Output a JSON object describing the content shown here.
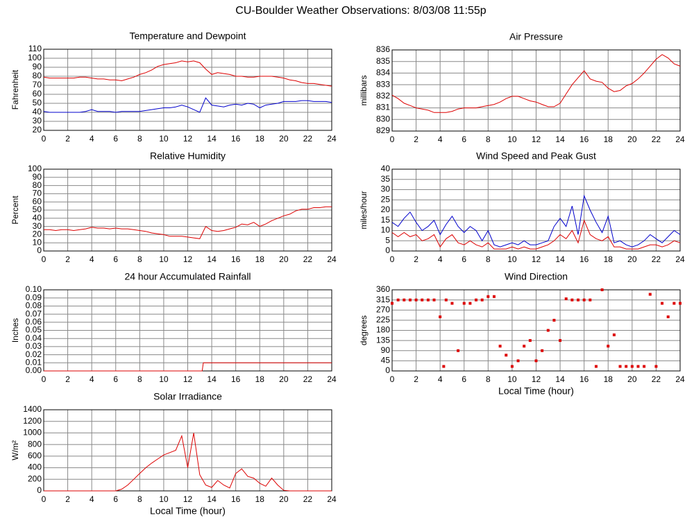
{
  "title": "CU-Boulder Weather Observations: 8/03/08 11:55p",
  "chart_data": [
    {
      "type": "line",
      "title": "Temperature and Dewpoint",
      "ylabel": "Fahrenheit",
      "x": [
        0,
        0.5,
        1,
        1.5,
        2,
        2.5,
        3,
        3.5,
        4,
        4.5,
        5,
        5.5,
        6,
        6.5,
        7,
        7.5,
        8,
        8.5,
        9,
        9.5,
        10,
        10.5,
        11,
        11.5,
        12,
        12.5,
        13,
        13.5,
        14,
        14.5,
        15,
        15.5,
        16,
        16.5,
        17,
        17.5,
        18,
        18.5,
        19,
        19.5,
        20,
        20.5,
        21,
        21.5,
        22,
        22.5,
        23,
        23.5,
        24
      ],
      "series": [
        {
          "color": "#dd0000",
          "values": [
            79,
            78,
            78,
            78,
            78,
            78,
            79,
            79,
            78,
            77,
            77,
            76,
            76,
            75,
            77,
            79,
            82,
            84,
            87,
            91,
            93,
            94,
            95,
            97,
            96,
            97,
            95,
            88,
            82,
            84,
            83,
            82,
            80,
            80,
            79,
            79,
            80,
            80,
            80,
            79,
            78,
            76,
            75,
            73,
            72,
            72,
            71,
            70,
            69
          ]
        },
        {
          "color": "#0000cc",
          "values": [
            41,
            40,
            40,
            40,
            40,
            40,
            40,
            41,
            43,
            41,
            41,
            41,
            40,
            41,
            41,
            41,
            41,
            42,
            43,
            44,
            45,
            45,
            46,
            48,
            46,
            43,
            40,
            56,
            48,
            47,
            46,
            48,
            49,
            48,
            50,
            49,
            45,
            48,
            49,
            50,
            52,
            52,
            52,
            53,
            53,
            52,
            52,
            52,
            51
          ]
        }
      ],
      "xlim": [
        0,
        24
      ],
      "xticks": [
        0,
        2,
        4,
        6,
        8,
        10,
        12,
        14,
        16,
        18,
        20,
        22,
        24
      ],
      "ylim": [
        20,
        110
      ],
      "yticks": [
        20,
        30,
        40,
        50,
        60,
        70,
        80,
        90,
        100,
        110
      ],
      "grid": true
    },
    {
      "type": "line",
      "title": "Air Pressure",
      "ylabel": "millibars",
      "x": [
        0,
        0.5,
        1,
        1.5,
        2,
        2.5,
        3,
        3.5,
        4,
        4.5,
        5,
        5.5,
        6,
        6.5,
        7,
        7.5,
        8,
        8.5,
        9,
        9.5,
        10,
        10.5,
        11,
        11.5,
        12,
        12.5,
        13,
        13.5,
        14,
        14.5,
        15,
        15.5,
        16,
        16.5,
        17,
        17.5,
        18,
        18.5,
        19,
        19.5,
        20,
        20.5,
        21,
        21.5,
        22,
        22.5,
        23,
        23.5,
        24
      ],
      "series": [
        {
          "color": "#dd0000",
          "values": [
            832.1,
            831.8,
            831.4,
            831.2,
            831.0,
            830.9,
            830.8,
            830.6,
            830.6,
            830.6,
            830.7,
            830.9,
            831.0,
            831.0,
            831.0,
            831.1,
            831.2,
            831.3,
            831.5,
            831.8,
            832.0,
            832.0,
            831.8,
            831.6,
            831.5,
            831.3,
            831.1,
            831.1,
            831.4,
            832.2,
            833.0,
            833.6,
            834.2,
            833.5,
            833.3,
            833.2,
            832.7,
            832.4,
            832.5,
            832.9,
            833.1,
            833.5,
            834.0,
            834.6,
            835.2,
            835.6,
            835.3,
            834.8,
            834.6
          ]
        }
      ],
      "xlim": [
        0,
        24
      ],
      "xticks": [
        0,
        2,
        4,
        6,
        8,
        10,
        12,
        14,
        16,
        18,
        20,
        22,
        24
      ],
      "ylim": [
        829,
        836
      ],
      "yticks": [
        829,
        830,
        831,
        832,
        833,
        834,
        835,
        836
      ],
      "grid": true
    },
    {
      "type": "line",
      "title": "Relative Humidity",
      "ylabel": "Percent",
      "x": [
        0,
        0.5,
        1,
        1.5,
        2,
        2.5,
        3,
        3.5,
        4,
        4.5,
        5,
        5.5,
        6,
        6.5,
        7,
        7.5,
        8,
        8.5,
        9,
        9.5,
        10,
        10.5,
        11,
        11.5,
        12,
        12.5,
        13,
        13.5,
        14,
        14.5,
        15,
        15.5,
        16,
        16.5,
        17,
        17.5,
        18,
        18.5,
        19,
        19.5,
        20,
        20.5,
        21,
        21.5,
        22,
        22.5,
        23,
        23.5,
        24
      ],
      "series": [
        {
          "color": "#dd0000",
          "values": [
            26,
            26,
            25,
            26,
            26,
            25,
            26,
            27,
            29,
            28,
            28,
            27,
            28,
            27,
            27,
            26,
            25,
            24,
            22,
            21,
            20,
            18,
            18,
            18,
            17,
            16,
            15,
            30,
            25,
            24,
            25,
            27,
            29,
            33,
            32,
            35,
            30,
            33,
            37,
            40,
            43,
            45,
            49,
            51,
            51,
            53,
            53,
            54,
            54
          ]
        }
      ],
      "xlim": [
        0,
        24
      ],
      "xticks": [
        0,
        2,
        4,
        6,
        8,
        10,
        12,
        14,
        16,
        18,
        20,
        22,
        24
      ],
      "ylim": [
        0,
        100
      ],
      "yticks": [
        0,
        10,
        20,
        30,
        40,
        50,
        60,
        70,
        80,
        90,
        100
      ],
      "grid": true
    },
    {
      "type": "line",
      "title": "Wind Speed and Peak Gust",
      "ylabel": "miles/hour",
      "x": [
        0,
        0.5,
        1,
        1.5,
        2,
        2.5,
        3,
        3.5,
        4,
        4.5,
        5,
        5.5,
        6,
        6.5,
        7,
        7.5,
        8,
        8.5,
        9,
        9.5,
        10,
        10.5,
        11,
        11.5,
        12,
        12.5,
        13,
        13.5,
        14,
        14.5,
        15,
        15.5,
        16,
        16.5,
        17,
        17.5,
        18,
        18.5,
        19,
        19.5,
        20,
        20.5,
        21,
        21.5,
        22,
        22.5,
        23,
        23.5,
        24
      ],
      "series": [
        {
          "color": "#0000cc",
          "values": [
            14,
            12,
            16,
            19,
            14,
            10,
            12,
            15,
            8,
            13,
            17,
            12,
            9,
            12,
            10,
            5,
            10,
            3,
            2,
            3,
            4,
            3,
            5,
            3,
            3,
            4,
            5,
            12,
            16,
            12,
            22,
            8,
            27,
            20,
            14,
            9,
            17,
            4,
            5,
            3,
            2,
            3,
            5,
            8,
            6,
            4,
            7,
            10,
            8
          ]
        },
        {
          "color": "#dd0000",
          "values": [
            9,
            7,
            9,
            7,
            8,
            5,
            6,
            8,
            2,
            6,
            8,
            4,
            3,
            5,
            3,
            2,
            4,
            1,
            1,
            1,
            2,
            1,
            2,
            1,
            1,
            2,
            3,
            5,
            8,
            6,
            10,
            4,
            15,
            8,
            6,
            5,
            7,
            2,
            2,
            1,
            1,
            1,
            2,
            3,
            3,
            2,
            3,
            5,
            4
          ]
        }
      ],
      "xlim": [
        0,
        24
      ],
      "xticks": [
        0,
        2,
        4,
        6,
        8,
        10,
        12,
        14,
        16,
        18,
        20,
        22,
        24
      ],
      "ylim": [
        0,
        40
      ],
      "yticks": [
        0,
        5,
        10,
        15,
        20,
        25,
        30,
        35,
        40
      ],
      "grid": true
    },
    {
      "type": "line",
      "title": "24 hour Accumulated Rainfall",
      "ylabel": "Inches",
      "x": [
        0,
        13.2,
        13.3,
        24
      ],
      "series": [
        {
          "color": "#dd0000",
          "values": [
            0,
            0,
            0.01,
            0.01
          ]
        }
      ],
      "xlim": [
        0,
        24
      ],
      "xticks": [
        0,
        2,
        4,
        6,
        8,
        10,
        12,
        14,
        16,
        18,
        20,
        22,
        24
      ],
      "ylim": [
        0,
        0.1
      ],
      "yticks": [
        {
          "value": 0,
          "label": "0.00"
        },
        {
          "value": 0.01,
          "label": "0.01"
        },
        {
          "value": 0.02,
          "label": "0.02"
        },
        {
          "value": 0.03,
          "label": "0.03"
        },
        {
          "value": 0.04,
          "label": "0.04"
        },
        {
          "value": 0.05,
          "label": "0.05"
        },
        {
          "value": 0.06,
          "label": "0.06"
        },
        {
          "value": 0.07,
          "label": "0.07"
        },
        {
          "value": 0.08,
          "label": "0.08"
        },
        {
          "value": 0.09,
          "label": "0.09"
        },
        {
          "value": 0.1,
          "label": "0.10"
        }
      ],
      "grid": true
    },
    {
      "type": "scatter",
      "title": "Wind Direction",
      "ylabel": "degrees",
      "xlabel": "Local Time (hour)",
      "x": [
        0,
        0.5,
        1,
        1.5,
        2,
        2.5,
        3,
        3.5,
        4,
        4.3,
        4.5,
        5,
        5.5,
        6,
        6.5,
        7,
        7.5,
        8,
        8.5,
        9,
        9.5,
        10,
        10.5,
        11,
        11.5,
        12,
        12.5,
        13,
        13.5,
        14,
        14.5,
        15,
        15.5,
        16,
        16.5,
        17,
        17.5,
        18,
        18.5,
        19,
        19.5,
        20,
        20.5,
        21,
        21.5,
        22,
        22.5,
        23,
        23.5,
        24
      ],
      "color": "#dd0000",
      "values": [
        300,
        315,
        315,
        315,
        315,
        315,
        315,
        315,
        240,
        20,
        315,
        300,
        90,
        300,
        300,
        315,
        315,
        330,
        330,
        110,
        70,
        20,
        45,
        110,
        135,
        45,
        90,
        180,
        225,
        135,
        320,
        315,
        315,
        315,
        315,
        20,
        360,
        110,
        160,
        20,
        20,
        20,
        20,
        20,
        340,
        20,
        300,
        240,
        300,
        300
      ],
      "xlim": [
        0,
        24
      ],
      "xticks": [
        0,
        2,
        4,
        6,
        8,
        10,
        12,
        14,
        16,
        18,
        20,
        22,
        24
      ],
      "ylim": [
        0,
        360
      ],
      "yticks": [
        0,
        45,
        90,
        135,
        180,
        225,
        270,
        315,
        360
      ],
      "grid": true
    },
    {
      "type": "line",
      "title": "Solar Irradiance",
      "ylabel": "W/m²",
      "xlabel": "Local Time (hour)",
      "x": [
        0,
        0.5,
        1,
        1.5,
        2,
        2.5,
        3,
        3.5,
        4,
        4.5,
        5,
        5.5,
        6,
        6.5,
        7,
        7.5,
        8,
        8.5,
        9,
        9.5,
        10,
        10.5,
        11,
        11.5,
        12,
        12.5,
        13,
        13.5,
        14,
        14.5,
        15,
        15.5,
        16,
        16.5,
        17,
        17.5,
        18,
        18.5,
        19,
        19.5,
        20,
        20.5,
        21,
        21.5,
        22,
        22.5,
        23,
        23.5,
        24
      ],
      "series": [
        {
          "color": "#dd0000",
          "values": [
            0,
            0,
            0,
            0,
            0,
            0,
            0,
            0,
            0,
            0,
            0,
            0,
            0,
            30,
            100,
            200,
            300,
            400,
            480,
            550,
            620,
            660,
            700,
            950,
            400,
            1000,
            280,
            100,
            60,
            180,
            100,
            50,
            300,
            380,
            250,
            220,
            130,
            80,
            220,
            100,
            10,
            0,
            0,
            0,
            0,
            0,
            0,
            0,
            0
          ]
        }
      ],
      "xlim": [
        0,
        24
      ],
      "xticks": [
        0,
        2,
        4,
        6,
        8,
        10,
        12,
        14,
        16,
        18,
        20,
        22,
        24
      ],
      "ylim": [
        0,
        1400
      ],
      "yticks": [
        0,
        200,
        400,
        600,
        800,
        1000,
        1200,
        1400
      ],
      "grid": true
    }
  ]
}
